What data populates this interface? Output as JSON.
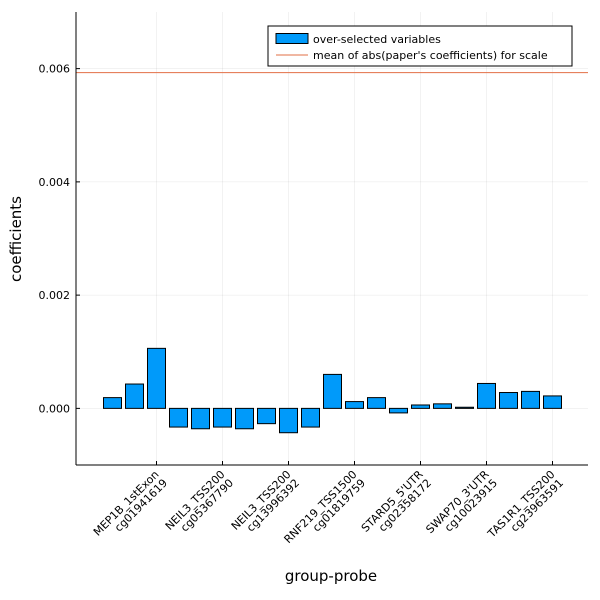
{
  "chart_data": {
    "type": "bar",
    "xlabel": "group-probe",
    "ylabel": "coefficients",
    "ylim": [
      -0.001,
      0.007
    ],
    "yticks": [
      0.0,
      0.002,
      0.004,
      0.006
    ],
    "ytick_labels": [
      "0.000",
      "0.002",
      "0.004",
      "0.006"
    ],
    "grid": true,
    "legend_position": "top-right",
    "xtick_labels": [
      {
        "line1": "MEP1B_1stExon",
        "line2": "cg01941619",
        "index": 3
      },
      {
        "line1": "NEIL3_TSS200",
        "line2": "cg05367790",
        "index": 6
      },
      {
        "line1": "NEIL3_TSS200",
        "line2": "cg13996392",
        "index": 9
      },
      {
        "line1": "RNF219_TSS1500",
        "line2": "cg01819759",
        "index": 12
      },
      {
        "line1": "STARD5_5'UTR",
        "line2": "cg02358172",
        "index": 15
      },
      {
        "line1": "SWAP70_3'UTR",
        "line2": "cg10023915",
        "index": 18
      },
      {
        "line1": "TAS1R1_TSS200",
        "line2": "cg23963591",
        "index": 21
      }
    ],
    "series": [
      {
        "name": "over-selected variables",
        "color": "#009AFA",
        "values": [
          0.00019,
          0.00043,
          0.00106,
          -0.00033,
          -0.00036,
          -0.00033,
          -0.00036,
          -0.00027,
          -0.00043,
          -0.00033,
          0.0006,
          0.00012,
          0.00019,
          -8e-05,
          6e-05,
          8e-05,
          2e-05,
          0.00044,
          0.00028,
          0.0003,
          0.00022
        ]
      }
    ],
    "reference_line": {
      "name": "mean of abs(paper's coefficients) for scale",
      "color": "#E26F46",
      "y": 0.00593
    }
  }
}
